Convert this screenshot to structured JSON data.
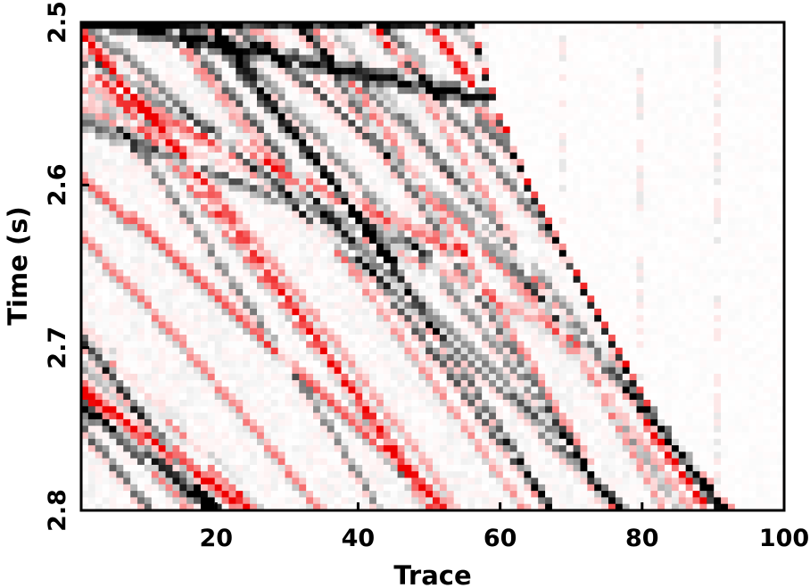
{
  "chart_data": {
    "type": "heatmap",
    "title": "",
    "xlabel": "Trace",
    "ylabel": "Time (s)",
    "xlim": [
      1,
      100
    ],
    "ylim": [
      2.5,
      2.8
    ],
    "y_inverted": true,
    "xticks": [
      20,
      40,
      60,
      80,
      100
    ],
    "yticks": [
      2.5,
      2.6,
      2.7,
      2.8
    ],
    "xtick_labels": [
      "20",
      "40",
      "60",
      "80",
      "100"
    ],
    "ytick_labels": [
      "2.5",
      "2.6",
      "2.7",
      "2.8"
    ],
    "grid": false,
    "colormap": {
      "negative": "#ee0000",
      "zero": "#ffffff",
      "positive": "#000000"
    },
    "n_traces": 100,
    "sample_interval_s": 0.004,
    "first_break_times_s": [
      [
        56,
        2.5
      ],
      [
        60,
        2.56
      ],
      [
        65,
        2.61
      ],
      [
        70,
        2.65
      ],
      [
        75,
        2.69
      ],
      [
        80,
        2.73
      ],
      [
        85,
        2.76
      ],
      [
        90,
        2.785
      ],
      [
        93,
        2.8
      ]
    ],
    "events": [
      {
        "kind": "strong",
        "polarity": "positive",
        "from": [
          1,
          2.495
        ],
        "to": [
          58,
          2.545
        ]
      },
      {
        "kind": "strong",
        "polarity": "negative",
        "from": [
          50,
          2.5
        ],
        "to": [
          56,
          2.535
        ]
      },
      {
        "kind": "strong",
        "polarity": "positive",
        "from": [
          20,
          2.51
        ],
        "to": [
          45,
          2.645
        ]
      },
      {
        "kind": "moderate",
        "polarity": "positive",
        "from": [
          1,
          2.56
        ],
        "to": [
          50,
          2.64
        ]
      },
      {
        "kind": "moderate",
        "polarity": "negative",
        "from": [
          1,
          2.535
        ],
        "to": [
          55,
          2.64
        ]
      },
      {
        "kind": "strong",
        "polarity": "negative",
        "from": [
          1,
          2.725
        ],
        "to": [
          25,
          2.8
        ]
      },
      {
        "kind": "strong",
        "polarity": "positive",
        "from": [
          1,
          2.735
        ],
        "to": [
          20,
          2.8
        ]
      },
      {
        "kind": "strong",
        "polarity": "positive",
        "from": [
          82,
          2.74
        ],
        "to": [
          92,
          2.8
        ]
      },
      {
        "kind": "strong",
        "polarity": "negative",
        "from": [
          81,
          2.745
        ],
        "to": [
          90,
          2.8
        ]
      }
    ]
  }
}
